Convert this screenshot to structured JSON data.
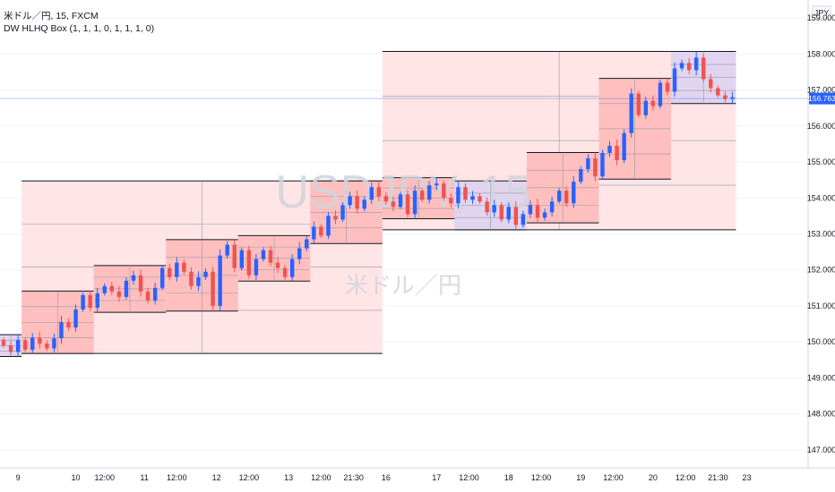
{
  "legend": {
    "title": "米ドル／円, 15, FXCM",
    "indicator": "DW HLHQ Box (1, 1, 1, 0, 1, 1, 1, 0)"
  },
  "watermark": {
    "symbol": "USDJPY, 15",
    "name": "米ドル／円"
  },
  "price_axis": {
    "currency": "JPY",
    "ticks": [
      "159.000",
      "158.000",
      "157.000",
      "156.000",
      "155.000",
      "154.000",
      "153.000",
      "152.000",
      "151.000",
      "150.000",
      "149.000",
      "148.000",
      "147.000"
    ],
    "last_price": "156.763"
  },
  "time_axis": {
    "ticks": [
      {
        "label": "9",
        "idx": 2.5
      },
      {
        "label": "10",
        "idx": 10.5
      },
      {
        "label": "12:00",
        "idx": 14.5
      },
      {
        "label": "11",
        "idx": 20
      },
      {
        "label": "12:00",
        "idx": 24.5
      },
      {
        "label": "12",
        "idx": 30
      },
      {
        "label": "12:00",
        "idx": 34.5
      },
      {
        "label": "13",
        "idx": 40
      },
      {
        "label": "12:00",
        "idx": 44.5
      },
      {
        "label": "21:30",
        "idx": 49
      },
      {
        "label": "16",
        "idx": 53.5
      },
      {
        "label": "17",
        "idx": 60.5
      },
      {
        "label": "12:00",
        "idx": 65
      },
      {
        "label": "18",
        "idx": 70.5
      },
      {
        "label": "12:00",
        "idx": 75
      },
      {
        "label": "19",
        "idx": 80.5
      },
      {
        "label": "12:00",
        "idx": 85
      },
      {
        "label": "20",
        "idx": 90.5
      },
      {
        "label": "12:00",
        "idx": 95
      },
      {
        "label": "21:30",
        "idx": 99.5
      },
      {
        "label": "23",
        "idx": 103.5
      }
    ]
  },
  "colors": {
    "up": "#2962ff",
    "down": "#ef5350",
    "week_box": "#ffe5e5",
    "day_box": "#ffbfbf",
    "current_box": "#e1d4ef",
    "box_border": "#131722",
    "last_price_bg": "#2962ff"
  },
  "chart_data": {
    "type": "candlestick",
    "title": "",
    "ylim": [
      146.5,
      159.5
    ],
    "xlim": [
      0,
      112
    ],
    "closes": [
      149.9,
      149.72,
      150.05,
      149.78,
      150.12,
      149.95,
      149.82,
      150.1,
      150.55,
      150.4,
      150.9,
      151.3,
      150.95,
      151.35,
      151.55,
      151.4,
      151.25,
      151.7,
      151.85,
      151.4,
      151.15,
      151.5,
      152.05,
      151.8,
      152.2,
      151.95,
      151.55,
      151.8,
      151.95,
      151.0,
      152.4,
      152.7,
      152.05,
      152.55,
      151.85,
      152.3,
      152.55,
      152.2,
      152.05,
      151.8,
      152.3,
      152.6,
      152.85,
      153.2,
      152.95,
      153.5,
      153.4,
      153.8,
      154.05,
      153.7,
      153.95,
      154.3,
      154.05,
      153.9,
      153.75,
      154.1,
      153.55,
      154.2,
      153.95,
      154.35,
      154.4,
      154.0,
      153.85,
      154.3,
      153.95,
      154.05,
      153.9,
      153.6,
      153.8,
      153.4,
      153.75,
      153.25,
      153.55,
      153.8,
      153.45,
      153.6,
      153.9,
      154.2,
      153.85,
      154.45,
      154.8,
      155.1,
      154.6,
      155.25,
      155.45,
      155.05,
      155.8,
      156.9,
      156.3,
      156.7,
      156.55,
      157.2,
      156.95,
      157.6,
      157.75,
      157.55,
      157.9,
      157.3,
      157.05,
      156.85,
      156.75,
      156.8
    ]
  }
}
